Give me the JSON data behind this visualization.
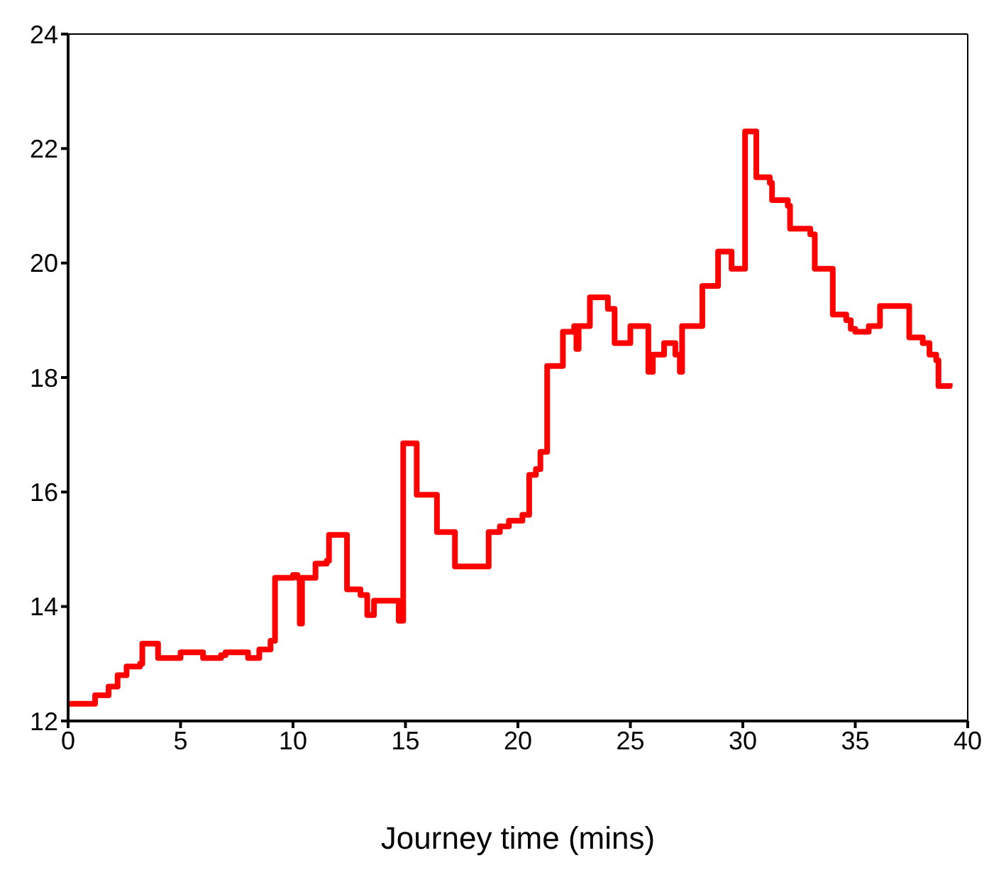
{
  "chart_data": {
    "type": "step",
    "xlabel": "Journey time (mins)",
    "x": [
      0,
      1,
      1.2,
      1.8,
      2.2,
      2.6,
      3.2,
      3.3,
      3.8,
      4.0,
      5.0,
      5.5,
      6.0,
      6.8,
      7.0,
      8.0,
      8.5,
      9.0,
      9.2,
      9.2,
      10.0,
      10.2,
      10.3,
      10.4,
      11.0,
      11.5,
      11.6,
      12.3,
      12.4,
      13.0,
      13.3,
      13.6,
      14.5,
      14.7,
      14.9,
      15.3,
      15.5,
      16.3,
      16.4,
      17.0,
      17.2,
      18.6,
      18.7,
      19.2,
      19.6,
      20.2,
      20.5,
      20.8,
      21.0,
      21.3,
      21.8,
      22.0,
      22.5,
      22.6,
      22.7,
      23.2,
      23.8,
      24.0,
      24.3,
      24.8,
      25.0,
      25.6,
      25.8,
      26.0,
      26.5,
      27.0,
      27.2,
      27.3,
      27.8,
      28.2,
      28.7,
      28.9,
      29.3,
      29.5,
      30.0,
      30.1,
      30.4,
      30.6,
      31.2,
      31.3,
      32.0,
      32.1,
      33.0,
      33.2,
      33.8,
      34.0,
      34.6,
      34.8,
      35.0,
      35.6,
      36.0,
      36.1,
      37.2,
      37.4,
      38.0,
      38.3,
      38.6,
      38.7,
      39.2
    ],
    "series": [
      {
        "color": "#ff0000",
        "values": [
          12.3,
          12.3,
          12.45,
          12.6,
          12.8,
          12.95,
          13.0,
          13.35,
          13.35,
          13.1,
          13.2,
          13.2,
          13.1,
          13.15,
          13.2,
          13.1,
          13.25,
          13.4,
          13.4,
          14.5,
          14.55,
          14.5,
          13.7,
          14.5,
          14.75,
          14.8,
          15.25,
          15.25,
          14.3,
          14.2,
          13.85,
          14.1,
          14.1,
          13.75,
          16.85,
          16.85,
          15.95,
          15.95,
          15.3,
          15.3,
          14.7,
          14.7,
          15.3,
          15.4,
          15.5,
          15.6,
          16.3,
          16.4,
          16.7,
          18.2,
          18.2,
          18.8,
          18.9,
          18.5,
          18.9,
          19.4,
          19.4,
          19.2,
          18.6,
          18.6,
          18.9,
          18.9,
          18.1,
          18.4,
          18.6,
          18.4,
          18.1,
          18.9,
          18.9,
          19.6,
          19.6,
          20.2,
          20.2,
          19.9,
          19.9,
          22.3,
          22.3,
          21.5,
          21.4,
          21.1,
          21.0,
          20.6,
          20.5,
          19.9,
          19.9,
          19.1,
          19.0,
          18.85,
          18.8,
          18.9,
          18.9,
          19.25,
          19.25,
          18.7,
          18.6,
          18.4,
          18.3,
          17.85,
          17.9
        ]
      }
    ],
    "xlim": [
      0,
      40
    ],
    "xticks": [
      0,
      5,
      10,
      15,
      20,
      25,
      30,
      35,
      40
    ],
    "ylim": [
      12,
      24
    ],
    "yticks": [
      12,
      14,
      16,
      18,
      20,
      22,
      24
    ],
    "grid": false,
    "legend": false,
    "marker": "none",
    "line_style": "solid"
  }
}
